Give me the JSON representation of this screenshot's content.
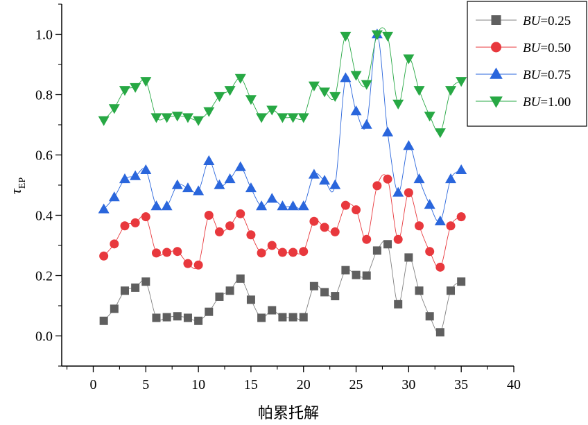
{
  "chart_data": {
    "type": "line",
    "title": "",
    "xlabel": "帕累托解",
    "ylabel_main": "τ",
    "ylabel_sub": "EP",
    "xlim": [
      -3,
      40
    ],
    "ylim": [
      -0.1,
      1.1
    ],
    "xticks": [
      0,
      5,
      10,
      15,
      20,
      25,
      30,
      35,
      40
    ],
    "xtick_labels": [
      "0",
      "5",
      "10",
      "15",
      "20",
      "25",
      "30",
      "35",
      "40"
    ],
    "yticks": [
      0.0,
      0.2,
      0.4,
      0.6,
      0.8,
      1.0
    ],
    "ytick_labels": [
      "0.0",
      "0.2",
      "0.4",
      "0.6",
      "0.8",
      "1.0"
    ],
    "grid": false,
    "legend_position": "top-right",
    "x": [
      1,
      2,
      3,
      4,
      5,
      6,
      7,
      8,
      9,
      10,
      11,
      12,
      13,
      14,
      15,
      16,
      17,
      18,
      19,
      20,
      21,
      22,
      23,
      24,
      25,
      26,
      27,
      28,
      29,
      30,
      31,
      32,
      33,
      34,
      35
    ],
    "series": [
      {
        "name_prefix": "BU",
        "name_suffix": "=0.25",
        "marker": "square",
        "color": "#5f5f5f",
        "line_color": "#808080",
        "values": [
          0.05,
          0.09,
          0.15,
          0.16,
          0.18,
          0.06,
          0.062,
          0.065,
          0.06,
          0.05,
          0.08,
          0.13,
          0.15,
          0.19,
          0.12,
          0.06,
          0.085,
          0.062,
          0.062,
          0.062,
          0.165,
          0.145,
          0.132,
          0.218,
          0.202,
          0.2,
          0.283,
          0.304,
          0.105,
          0.26,
          0.15,
          0.065,
          0.012,
          0.15,
          0.18
        ]
      },
      {
        "name_prefix": "BU",
        "name_suffix": "=0.50",
        "marker": "circle",
        "color": "#e8383d",
        "line_color": "#e8383d",
        "values": [
          0.265,
          0.305,
          0.365,
          0.375,
          0.395,
          0.275,
          0.277,
          0.28,
          0.24,
          0.235,
          0.4,
          0.345,
          0.365,
          0.405,
          0.335,
          0.275,
          0.3,
          0.277,
          0.277,
          0.28,
          0.38,
          0.36,
          0.345,
          0.433,
          0.418,
          0.32,
          0.498,
          0.52,
          0.32,
          0.475,
          0.365,
          0.28,
          0.228,
          0.365,
          0.395
        ]
      },
      {
        "name_prefix": "BU",
        "name_suffix": "=0.75",
        "marker": "triangle-up",
        "color": "#2a66dc",
        "line_color": "#2a66dc",
        "values": [
          0.42,
          0.46,
          0.52,
          0.53,
          0.55,
          0.43,
          0.43,
          0.5,
          0.49,
          0.48,
          0.58,
          0.5,
          0.52,
          0.56,
          0.49,
          0.43,
          0.455,
          0.43,
          0.43,
          0.43,
          0.535,
          0.515,
          0.5,
          0.855,
          0.745,
          0.7,
          1.0,
          0.675,
          0.475,
          0.63,
          0.52,
          0.435,
          0.38,
          0.52,
          0.55
        ]
      },
      {
        "name_prefix": "BU",
        "name_suffix": "=1.00",
        "marker": "triangle-down",
        "color": "#27a844",
        "line_color": "#27a844",
        "values": [
          0.715,
          0.755,
          0.815,
          0.825,
          0.845,
          0.725,
          0.725,
          0.73,
          0.725,
          0.715,
          0.745,
          0.795,
          0.815,
          0.855,
          0.785,
          0.725,
          0.75,
          0.725,
          0.725,
          0.725,
          0.83,
          0.81,
          0.795,
          0.995,
          0.865,
          0.835,
          1.0,
          0.995,
          0.77,
          0.92,
          0.815,
          0.73,
          0.675,
          0.815,
          0.845
        ]
      }
    ]
  }
}
